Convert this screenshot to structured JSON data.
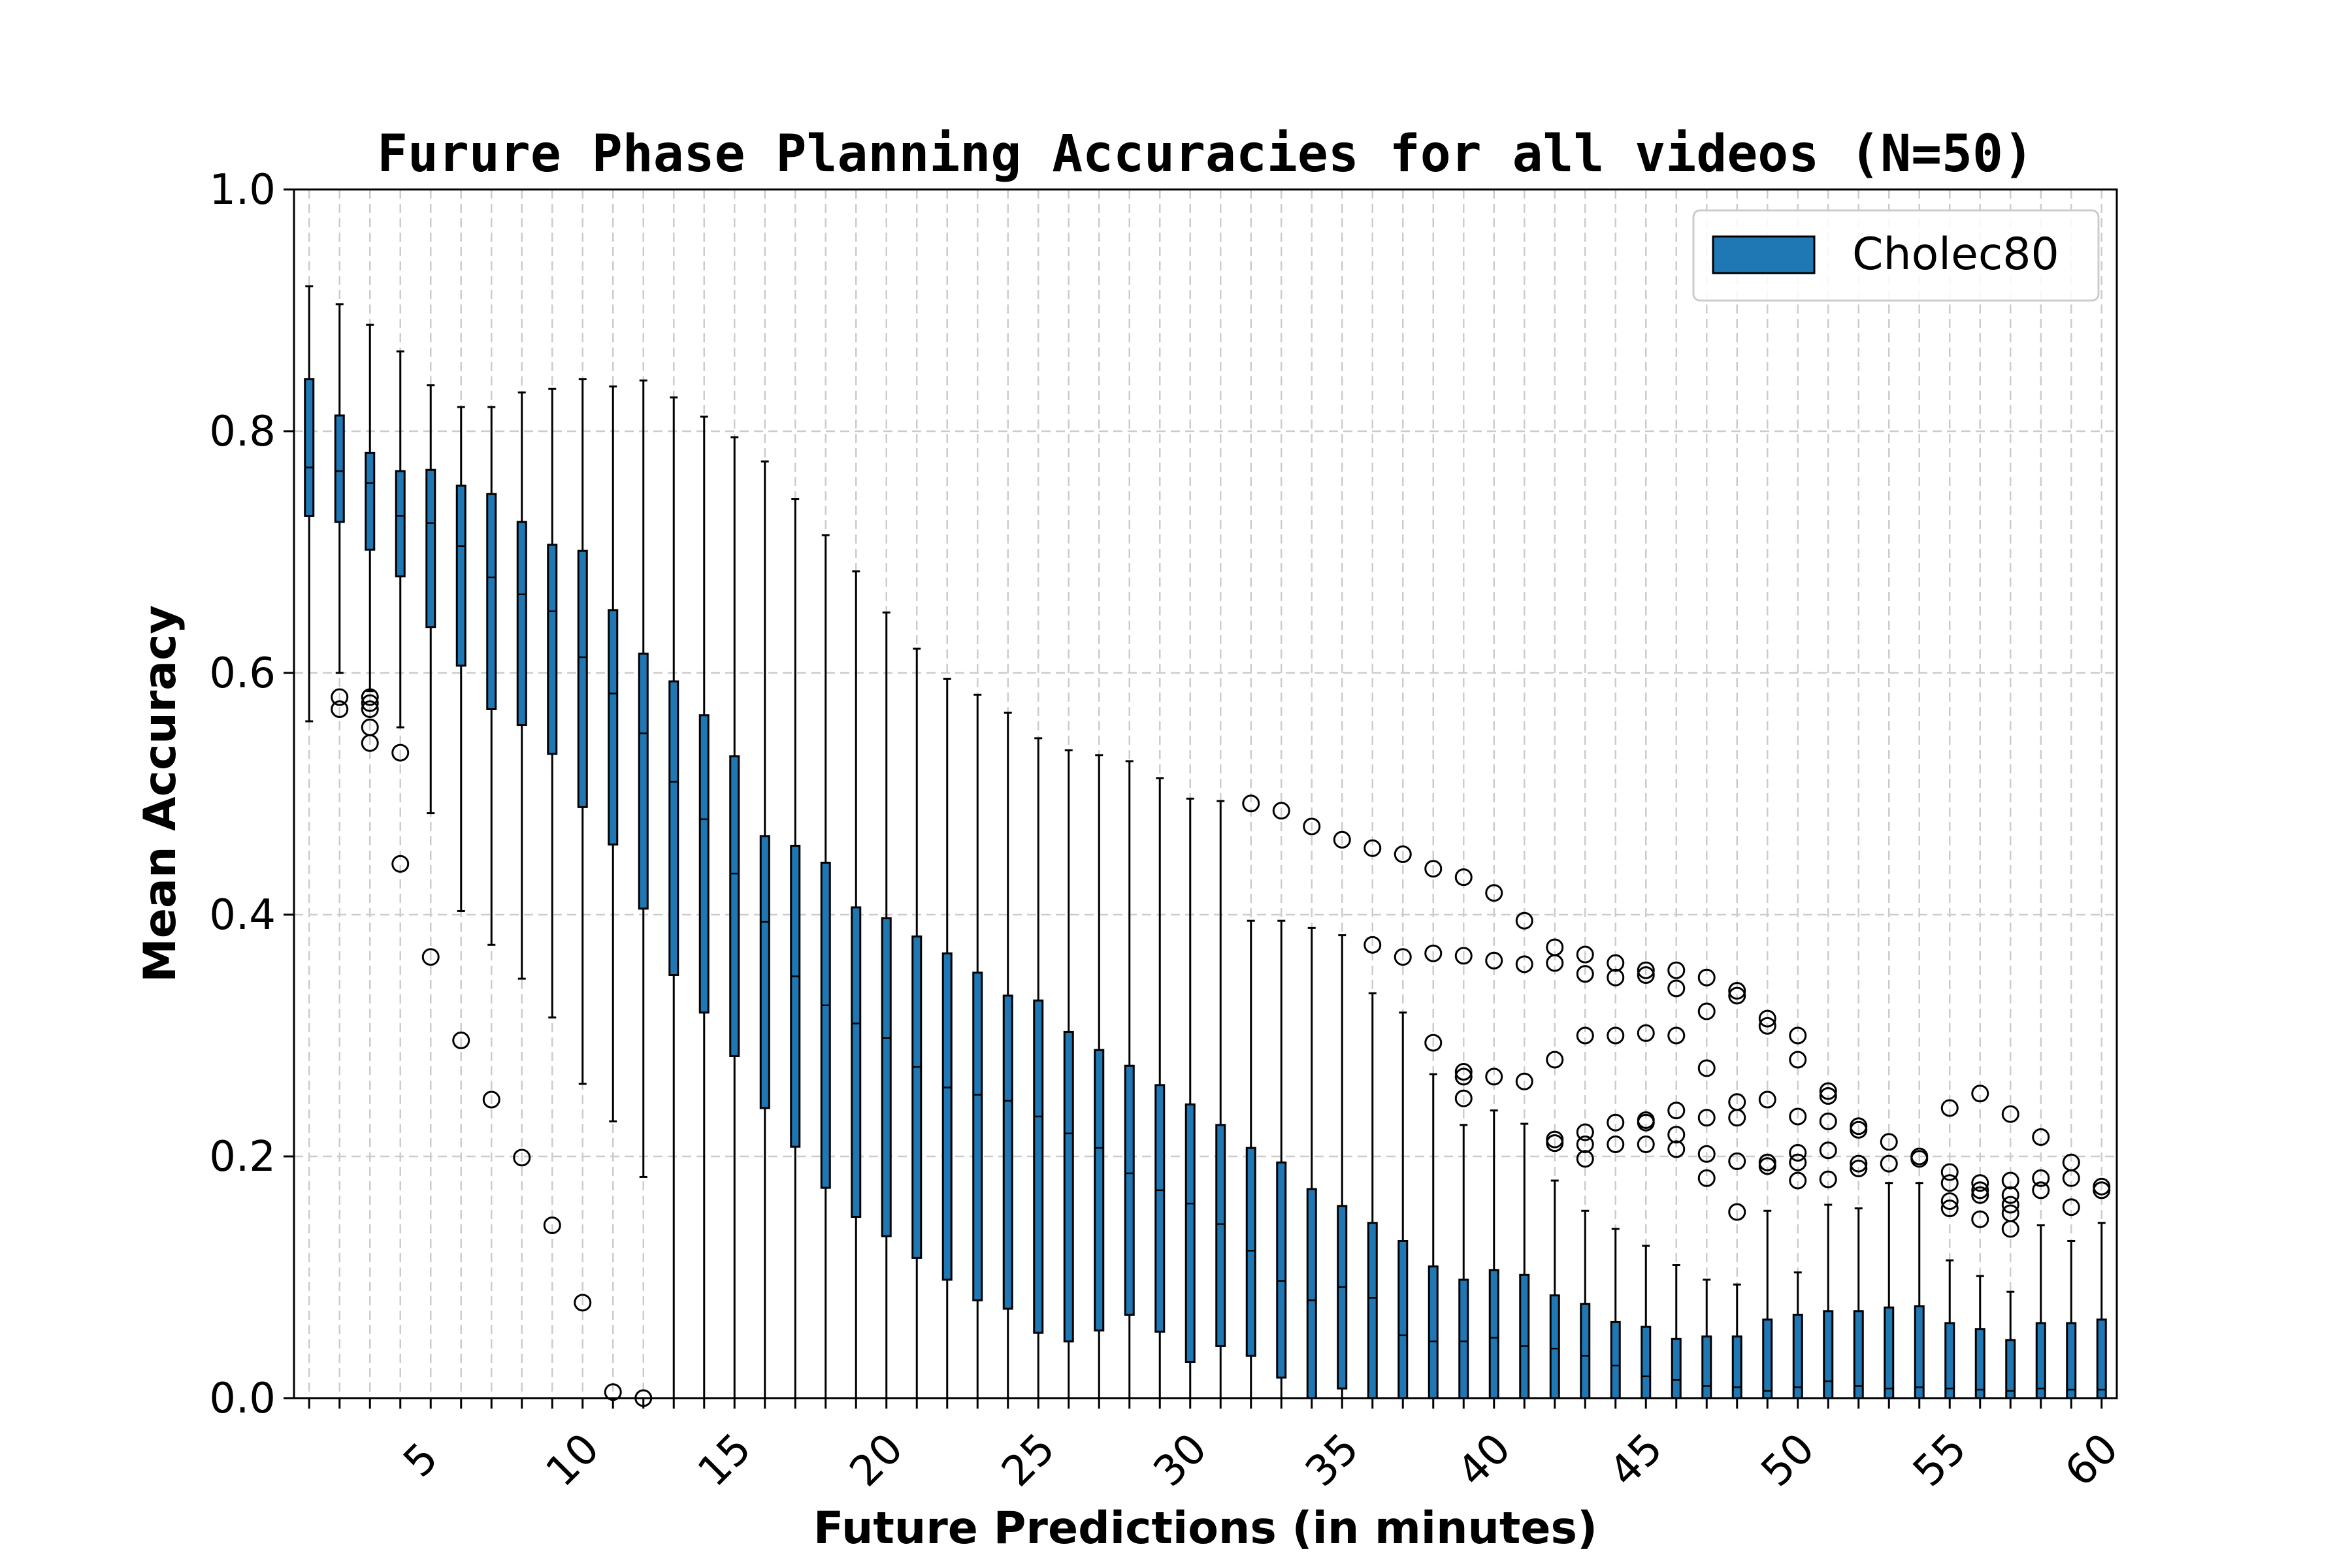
{
  "chart_data": {
    "type": "box",
    "title": "Furure Phase Planning Accuracies for all videos (N=50)",
    "xlabel": "Future Predictions (in minutes)",
    "ylabel": "Mean Accuracy",
    "xlim": [
      0.5,
      60.5
    ],
    "ylim": [
      0.0,
      1.0
    ],
    "xticks": [
      5,
      10,
      15,
      20,
      25,
      30,
      35,
      40,
      45,
      50,
      55,
      60
    ],
    "yticks": [
      "0.0",
      "0.2",
      "0.4",
      "0.6",
      "0.8",
      "1.0"
    ],
    "grid": true,
    "legend": {
      "position": "top-right",
      "entries": [
        "Cholec80"
      ]
    },
    "colors": {
      "box_fill": "#1f77b4",
      "edge": "#000000",
      "grid": "#cccccc"
    },
    "series": [
      {
        "name": "Cholec80",
        "boxes": [
          {
            "x": 1,
            "whislo": 0.56,
            "q1": 0.73,
            "med": 0.77,
            "q3": 0.843,
            "whishi": 0.92,
            "fliers": []
          },
          {
            "x": 2,
            "whislo": 0.6,
            "q1": 0.725,
            "med": 0.767,
            "q3": 0.813,
            "whishi": 0.905,
            "fliers": [
              0.58,
              0.57
            ]
          },
          {
            "x": 3,
            "whislo": 0.585,
            "q1": 0.702,
            "med": 0.757,
            "q3": 0.782,
            "whishi": 0.888,
            "fliers": [
              0.58,
              0.575,
              0.57,
              0.555,
              0.542
            ]
          },
          {
            "x": 4,
            "whislo": 0.555,
            "q1": 0.68,
            "med": 0.73,
            "q3": 0.767,
            "whishi": 0.866,
            "fliers": [
              0.534,
              0.442
            ]
          },
          {
            "x": 5,
            "whislo": 0.484,
            "q1": 0.638,
            "med": 0.724,
            "q3": 0.768,
            "whishi": 0.838,
            "fliers": [
              0.365
            ]
          },
          {
            "x": 6,
            "whislo": 0.403,
            "q1": 0.606,
            "med": 0.705,
            "q3": 0.755,
            "whishi": 0.82,
            "fliers": [
              0.296
            ]
          },
          {
            "x": 7,
            "whislo": 0.375,
            "q1": 0.57,
            "med": 0.679,
            "q3": 0.748,
            "whishi": 0.82,
            "fliers": [
              0.247
            ]
          },
          {
            "x": 8,
            "whislo": 0.347,
            "q1": 0.557,
            "med": 0.665,
            "q3": 0.725,
            "whishi": 0.832,
            "fliers": [
              0.199
            ]
          },
          {
            "x": 9,
            "whislo": 0.315,
            "q1": 0.533,
            "med": 0.651,
            "q3": 0.706,
            "whishi": 0.835,
            "fliers": [
              0.143
            ]
          },
          {
            "x": 10,
            "whislo": 0.26,
            "q1": 0.489,
            "med": 0.613,
            "q3": 0.701,
            "whishi": 0.843,
            "fliers": [
              0.079
            ]
          },
          {
            "x": 11,
            "whislo": 0.229,
            "q1": 0.458,
            "med": 0.583,
            "q3": 0.652,
            "whishi": 0.837,
            "fliers": [
              0.005
            ]
          },
          {
            "x": 12,
            "whislo": 0.183,
            "q1": 0.405,
            "med": 0.55,
            "q3": 0.616,
            "whishi": 0.842,
            "fliers": [
              0.0
            ]
          },
          {
            "x": 13,
            "whislo": 0.0,
            "q1": 0.35,
            "med": 0.51,
            "q3": 0.593,
            "whishi": 0.828,
            "fliers": []
          },
          {
            "x": 14,
            "whislo": 0.0,
            "q1": 0.319,
            "med": 0.479,
            "q3": 0.565,
            "whishi": 0.812,
            "fliers": []
          },
          {
            "x": 15,
            "whislo": 0.0,
            "q1": 0.283,
            "med": 0.434,
            "q3": 0.531,
            "whishi": 0.795,
            "fliers": []
          },
          {
            "x": 16,
            "whislo": 0.0,
            "q1": 0.24,
            "med": 0.394,
            "q3": 0.465,
            "whishi": 0.775,
            "fliers": []
          },
          {
            "x": 17,
            "whislo": 0.0,
            "q1": 0.208,
            "med": 0.349,
            "q3": 0.457,
            "whishi": 0.744,
            "fliers": []
          },
          {
            "x": 18,
            "whislo": 0.0,
            "q1": 0.174,
            "med": 0.325,
            "q3": 0.443,
            "whishi": 0.714,
            "fliers": []
          },
          {
            "x": 19,
            "whislo": 0.0,
            "q1": 0.15,
            "med": 0.31,
            "q3": 0.406,
            "whishi": 0.684,
            "fliers": []
          },
          {
            "x": 20,
            "whislo": 0.0,
            "q1": 0.134,
            "med": 0.298,
            "q3": 0.397,
            "whishi": 0.65,
            "fliers": []
          },
          {
            "x": 21,
            "whislo": 0.0,
            "q1": 0.116,
            "med": 0.274,
            "q3": 0.382,
            "whishi": 0.62,
            "fliers": []
          },
          {
            "x": 22,
            "whislo": 0.0,
            "q1": 0.098,
            "med": 0.257,
            "q3": 0.368,
            "whishi": 0.595,
            "fliers": []
          },
          {
            "x": 23,
            "whislo": 0.0,
            "q1": 0.081,
            "med": 0.251,
            "q3": 0.352,
            "whishi": 0.582,
            "fliers": []
          },
          {
            "x": 24,
            "whislo": 0.0,
            "q1": 0.074,
            "med": 0.246,
            "q3": 0.333,
            "whishi": 0.567,
            "fliers": []
          },
          {
            "x": 25,
            "whislo": 0.0,
            "q1": 0.054,
            "med": 0.233,
            "q3": 0.329,
            "whishi": 0.546,
            "fliers": []
          },
          {
            "x": 26,
            "whislo": 0.0,
            "q1": 0.047,
            "med": 0.219,
            "q3": 0.303,
            "whishi": 0.536,
            "fliers": []
          },
          {
            "x": 27,
            "whislo": 0.0,
            "q1": 0.056,
            "med": 0.207,
            "q3": 0.288,
            "whishi": 0.532,
            "fliers": []
          },
          {
            "x": 28,
            "whislo": 0.0,
            "q1": 0.069,
            "med": 0.186,
            "q3": 0.275,
            "whishi": 0.527,
            "fliers": []
          },
          {
            "x": 29,
            "whislo": 0.0,
            "q1": 0.055,
            "med": 0.172,
            "q3": 0.259,
            "whishi": 0.513,
            "fliers": []
          },
          {
            "x": 30,
            "whislo": 0.0,
            "q1": 0.03,
            "med": 0.161,
            "q3": 0.243,
            "whishi": 0.496,
            "fliers": []
          },
          {
            "x": 31,
            "whislo": 0.0,
            "q1": 0.043,
            "med": 0.144,
            "q3": 0.226,
            "whishi": 0.494,
            "fliers": []
          },
          {
            "x": 32,
            "whislo": 0.0,
            "q1": 0.035,
            "med": 0.122,
            "q3": 0.207,
            "whishi": 0.395,
            "fliers": [
              0.492
            ]
          },
          {
            "x": 33,
            "whislo": 0.0,
            "q1": 0.017,
            "med": 0.097,
            "q3": 0.195,
            "whishi": 0.395,
            "fliers": [
              0.486
            ]
          },
          {
            "x": 34,
            "whislo": 0.0,
            "q1": 0.0,
            "med": 0.081,
            "q3": 0.173,
            "whishi": 0.389,
            "fliers": [
              0.473
            ]
          },
          {
            "x": 35,
            "whislo": 0.0,
            "q1": 0.008,
            "med": 0.092,
            "q3": 0.159,
            "whishi": 0.383,
            "fliers": [
              0.462
            ]
          },
          {
            "x": 36,
            "whislo": 0.0,
            "q1": 0.0,
            "med": 0.083,
            "q3": 0.145,
            "whishi": 0.335,
            "fliers": [
              0.455,
              0.375
            ]
          },
          {
            "x": 37,
            "whislo": 0.0,
            "q1": 0.0,
            "med": 0.052,
            "q3": 0.13,
            "whishi": 0.319,
            "fliers": [
              0.45,
              0.365
            ]
          },
          {
            "x": 38,
            "whislo": 0.0,
            "q1": 0.0,
            "med": 0.047,
            "q3": 0.109,
            "whishi": 0.268,
            "fliers": [
              0.438,
              0.368,
              0.294
            ]
          },
          {
            "x": 39,
            "whislo": 0.0,
            "q1": 0.0,
            "med": 0.047,
            "q3": 0.098,
            "whishi": 0.226,
            "fliers": [
              0.431,
              0.366,
              0.27,
              0.266,
              0.248
            ]
          },
          {
            "x": 40,
            "whislo": 0.0,
            "q1": 0.0,
            "med": 0.05,
            "q3": 0.106,
            "whishi": 0.238,
            "fliers": [
              0.418,
              0.362,
              0.266
            ]
          },
          {
            "x": 41,
            "whislo": 0.0,
            "q1": 0.0,
            "med": 0.043,
            "q3": 0.102,
            "whishi": 0.227,
            "fliers": [
              0.395,
              0.359,
              0.262
            ]
          },
          {
            "x": 42,
            "whislo": 0.0,
            "q1": 0.0,
            "med": 0.041,
            "q3": 0.085,
            "whishi": 0.18,
            "fliers": [
              0.373,
              0.36,
              0.28,
              0.214,
              0.211
            ]
          },
          {
            "x": 43,
            "whislo": 0.0,
            "q1": 0.0,
            "med": 0.035,
            "q3": 0.078,
            "whishi": 0.155,
            "fliers": [
              0.367,
              0.351,
              0.3,
              0.22,
              0.21,
              0.198
            ]
          },
          {
            "x": 44,
            "whislo": 0.0,
            "q1": 0.0,
            "med": 0.027,
            "q3": 0.063,
            "whishi": 0.14,
            "fliers": [
              0.36,
              0.348,
              0.3,
              0.228,
              0.21
            ]
          },
          {
            "x": 45,
            "whislo": 0.0,
            "q1": 0.0,
            "med": 0.018,
            "q3": 0.059,
            "whishi": 0.126,
            "fliers": [
              0.354,
              0.35,
              0.302,
              0.23,
              0.228,
              0.21
            ]
          },
          {
            "x": 46,
            "whislo": 0.0,
            "q1": 0.0,
            "med": 0.015,
            "q3": 0.049,
            "whishi": 0.11,
            "fliers": [
              0.354,
              0.339,
              0.3,
              0.238,
              0.218,
              0.206
            ]
          },
          {
            "x": 47,
            "whislo": 0.0,
            "q1": 0.0,
            "med": 0.01,
            "q3": 0.051,
            "whishi": 0.098,
            "fliers": [
              0.348,
              0.32,
              0.273,
              0.232,
              0.202,
              0.182
            ]
          },
          {
            "x": 48,
            "whislo": 0.0,
            "q1": 0.0,
            "med": 0.009,
            "q3": 0.051,
            "whishi": 0.094,
            "fliers": [
              0.337,
              0.333,
              0.245,
              0.232,
              0.196,
              0.154
            ]
          },
          {
            "x": 49,
            "whislo": 0.0,
            "q1": 0.0,
            "med": 0.006,
            "q3": 0.065,
            "whishi": 0.155,
            "fliers": [
              0.314,
              0.308,
              0.247,
              0.195,
              0.192
            ]
          },
          {
            "x": 50,
            "whislo": 0.0,
            "q1": 0.0,
            "med": 0.009,
            "q3": 0.069,
            "whishi": 0.104,
            "fliers": [
              0.3,
              0.28,
              0.233,
              0.203,
              0.195,
              0.18
            ]
          },
          {
            "x": 51,
            "whislo": 0.0,
            "q1": 0.0,
            "med": 0.014,
            "q3": 0.072,
            "whishi": 0.16,
            "fliers": [
              0.254,
              0.25,
              0.229,
              0.205,
              0.181
            ]
          },
          {
            "x": 52,
            "whislo": 0.0,
            "q1": 0.0,
            "med": 0.01,
            "q3": 0.072,
            "whishi": 0.157,
            "fliers": [
              0.225,
              0.222,
              0.194,
              0.19
            ]
          },
          {
            "x": 53,
            "whislo": 0.0,
            "q1": 0.0,
            "med": 0.008,
            "q3": 0.075,
            "whishi": 0.178,
            "fliers": [
              0.212,
              0.194
            ]
          },
          {
            "x": 54,
            "whislo": 0.0,
            "q1": 0.0,
            "med": 0.009,
            "q3": 0.076,
            "whishi": 0.178,
            "fliers": [
              0.2,
              0.198
            ]
          },
          {
            "x": 55,
            "whislo": 0.0,
            "q1": 0.0,
            "med": 0.008,
            "q3": 0.062,
            "whishi": 0.114,
            "fliers": [
              0.24,
              0.187,
              0.178,
              0.163,
              0.157
            ]
          },
          {
            "x": 56,
            "whislo": 0.0,
            "q1": 0.0,
            "med": 0.007,
            "q3": 0.057,
            "whishi": 0.101,
            "fliers": [
              0.252,
              0.178,
              0.172,
              0.168,
              0.148
            ]
          },
          {
            "x": 57,
            "whislo": 0.0,
            "q1": 0.0,
            "med": 0.006,
            "q3": 0.048,
            "whishi": 0.088,
            "fliers": [
              0.235,
              0.18,
              0.168,
              0.16,
              0.153,
              0.14
            ]
          },
          {
            "x": 58,
            "whislo": 0.0,
            "q1": 0.0,
            "med": 0.008,
            "q3": 0.062,
            "whishi": 0.143,
            "fliers": [
              0.216,
              0.182,
              0.172
            ]
          },
          {
            "x": 59,
            "whislo": 0.0,
            "q1": 0.0,
            "med": 0.007,
            "q3": 0.062,
            "whishi": 0.13,
            "fliers": [
              0.195,
              0.182,
              0.158
            ]
          },
          {
            "x": 60,
            "whislo": 0.0,
            "q1": 0.0,
            "med": 0.007,
            "q3": 0.065,
            "whishi": 0.145,
            "fliers": [
              0.175,
              0.172
            ]
          }
        ]
      }
    ]
  }
}
